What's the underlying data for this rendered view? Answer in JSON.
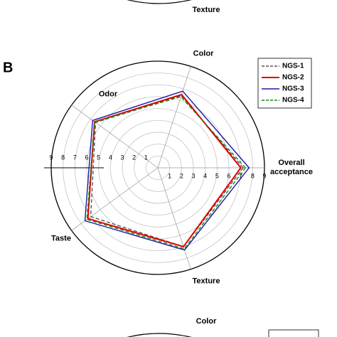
{
  "chart_data": {
    "type": "radar",
    "panel_label": "B",
    "categories": [
      "Overall acceptance",
      "Color",
      "Odor",
      "Taste",
      "Texture"
    ],
    "rlim": [
      0,
      9
    ],
    "rticks": [
      1,
      2,
      3,
      4,
      5,
      6,
      7,
      8,
      9
    ],
    "grid": true,
    "legend": "upper right",
    "series": [
      {
        "name": "NGS-1",
        "color": "#555555",
        "dashed": true,
        "values": [
          7.2,
          6.4,
          6.5,
          7.0,
          7.0
        ]
      },
      {
        "name": "NGS-2",
        "color": "#e00000",
        "dashed": false,
        "values": [
          7.0,
          6.5,
          6.6,
          7.3,
          7.0
        ]
      },
      {
        "name": "NGS-3",
        "color": "#1a1aa0",
        "dashed": false,
        "values": [
          7.7,
          6.8,
          6.8,
          7.6,
          7.3
        ]
      },
      {
        "name": "NGS-4",
        "color": "#1a8a1a",
        "dashed": true,
        "values": [
          7.4,
          6.3,
          6.6,
          7.4,
          7.2
        ]
      }
    ],
    "fragments": {
      "top_label": "Texture",
      "bottom_label": "Color"
    }
  }
}
